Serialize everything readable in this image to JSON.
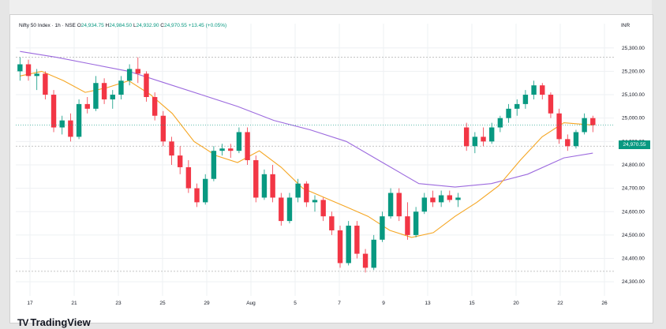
{
  "header": {
    "topbar_text": "",
    "symbol": "Nifty 50 Index · 1h · NSE",
    "open_label": "O",
    "open": "24,934.75",
    "high_label": "H",
    "high": "24,984.50",
    "low_label": "L",
    "low": "24,932.90",
    "close_label": "C",
    "close": "24,970.55",
    "change": "+13.45 (+0.05%)",
    "currency": "INR"
  },
  "price_tag": "24,970.55",
  "brand": {
    "logo_glyph": "TV",
    "name": "TradingView"
  },
  "colors": {
    "up": "#089981",
    "down": "#f23645",
    "ma_fast": "#f5a623",
    "ma_slow": "#9c6ade",
    "grid": "#eef0f3",
    "dashed": "#b0b0b0"
  },
  "chart_data": {
    "type": "candlestick",
    "y_axis_ticks": [
      25300,
      25200,
      25100,
      25000,
      24900,
      24800,
      24700,
      24600,
      24500,
      24400,
      24300
    ],
    "y_axis_labels": [
      "25,300.00",
      "25,200.00",
      "25,100.00",
      "25,000.00",
      "24,900.00",
      "24,800.00",
      "24,700.00",
      "24,600.00",
      "24,500.00",
      "24,400.00",
      "24,300.00"
    ],
    "ylim": [
      24250,
      25370
    ],
    "x_axis_labels": [
      "17",
      "21",
      "23",
      "25",
      "29",
      "Aug",
      "5",
      "7",
      "9",
      "13",
      "15",
      "20",
      "22",
      "26"
    ],
    "ma_fast": [
      [
        0,
        25180
      ],
      [
        3,
        25200
      ],
      [
        6,
        25160
      ],
      [
        9,
        25110
      ],
      [
        12,
        25130
      ],
      [
        15,
        25160
      ],
      [
        18,
        25100
      ],
      [
        21,
        25020
      ],
      [
        24,
        24900
      ],
      [
        27,
        24840
      ],
      [
        30,
        24810
      ],
      [
        33,
        24860
      ],
      [
        36,
        24790
      ],
      [
        39,
        24700
      ],
      [
        42,
        24660
      ],
      [
        45,
        24620
      ],
      [
        48,
        24580
      ],
      [
        51,
        24520
      ],
      [
        54,
        24490
      ],
      [
        57,
        24510
      ],
      [
        60,
        24580
      ],
      [
        63,
        24640
      ],
      [
        66,
        24710
      ],
      [
        69,
        24820
      ],
      [
        72,
        24920
      ],
      [
        75,
        24980
      ],
      [
        77,
        24975
      ],
      [
        79,
        24970
      ]
    ],
    "ma_slow": [
      [
        0,
        25285
      ],
      [
        5,
        25260
      ],
      [
        10,
        25230
      ],
      [
        15,
        25200
      ],
      [
        20,
        25150
      ],
      [
        25,
        25100
      ],
      [
        30,
        25050
      ],
      [
        35,
        24990
      ],
      [
        40,
        24950
      ],
      [
        45,
        24900
      ],
      [
        50,
        24810
      ],
      [
        55,
        24720
      ],
      [
        60,
        24705
      ],
      [
        65,
        24720
      ],
      [
        70,
        24760
      ],
      [
        75,
        24830
      ],
      [
        79,
        24850
      ]
    ],
    "candles": [
      [
        25200,
        25260,
        25160,
        25230
      ],
      [
        25230,
        25250,
        25160,
        25180
      ],
      [
        25180,
        25210,
        25120,
        25190
      ],
      [
        25190,
        25200,
        25080,
        25100
      ],
      [
        25100,
        25120,
        24940,
        24960
      ],
      [
        24960,
        25010,
        24930,
        24990
      ],
      [
        24990,
        25020,
        24900,
        24920
      ],
      [
        24920,
        25080,
        24910,
        25060
      ],
      [
        25060,
        25090,
        25020,
        25040
      ],
      [
        25040,
        25180,
        25030,
        25150
      ],
      [
        25150,
        25170,
        25060,
        25080
      ],
      [
        25080,
        25120,
        25040,
        25100
      ],
      [
        25100,
        25180,
        25080,
        25160
      ],
      [
        25160,
        25230,
        25140,
        25210
      ],
      [
        25210,
        25260,
        25150,
        25190
      ],
      [
        25190,
        25200,
        25070,
        25090
      ],
      [
        25090,
        25110,
        24990,
        25010
      ],
      [
        25010,
        25030,
        24880,
        24900
      ],
      [
        24900,
        24920,
        24800,
        24840
      ],
      [
        24840,
        24880,
        24760,
        24790
      ],
      [
        24790,
        24820,
        24680,
        24700
      ],
      [
        24700,
        24720,
        24620,
        24640
      ],
      [
        24640,
        24760,
        24630,
        24740
      ],
      [
        24740,
        24880,
        24730,
        24860
      ],
      [
        24860,
        24890,
        24840,
        24870
      ],
      [
        24870,
        24890,
        24830,
        24860
      ],
      [
        24860,
        24960,
        24850,
        24940
      ],
      [
        24940,
        24960,
        24800,
        24820
      ],
      [
        24820,
        24840,
        24640,
        24660
      ],
      [
        24660,
        24780,
        24650,
        24760
      ],
      [
        24760,
        24800,
        24640,
        24660
      ],
      [
        24660,
        24680,
        24540,
        24560
      ],
      [
        24560,
        24680,
        24550,
        24660
      ],
      [
        24660,
        24740,
        24640,
        24720
      ],
      [
        24720,
        24730,
        24620,
        24640
      ],
      [
        24640,
        24670,
        24600,
        24650
      ],
      [
        24650,
        24660,
        24560,
        24580
      ],
      [
        24580,
        24600,
        24500,
        24520
      ],
      [
        24520,
        24540,
        24360,
        24380
      ],
      [
        24380,
        24560,
        24370,
        24540
      ],
      [
        24540,
        24560,
        24400,
        24420
      ],
      [
        24420,
        24440,
        24340,
        24360
      ],
      [
        24360,
        24500,
        24350,
        24480
      ],
      [
        24480,
        24600,
        24470,
        24580
      ],
      [
        24580,
        24700,
        24570,
        24680
      ],
      [
        24680,
        24700,
        24560,
        24580
      ],
      [
        24580,
        24640,
        24480,
        24500
      ],
      [
        24500,
        24620,
        24490,
        24600
      ],
      [
        24600,
        24680,
        24590,
        24660
      ],
      [
        24660,
        24690,
        24620,
        24640
      ],
      [
        24640,
        24690,
        24620,
        24670
      ],
      [
        24670,
        24690,
        24640,
        24650
      ],
      [
        24650,
        24680,
        24620,
        24660
      ],
      [
        24960,
        24980,
        24860,
        24880
      ],
      [
        24880,
        24940,
        24850,
        24920
      ],
      [
        24920,
        24960,
        24880,
        24900
      ],
      [
        24900,
        24980,
        24890,
        24960
      ],
      [
        24960,
        25010,
        24940,
        25000
      ],
      [
        25000,
        25060,
        24980,
        25040
      ],
      [
        25040,
        25080,
        25010,
        25060
      ],
      [
        25060,
        25120,
        25040,
        25100
      ],
      [
        25100,
        25160,
        25080,
        25140
      ],
      [
        25140,
        25150,
        25080,
        25100
      ],
      [
        25100,
        25110,
        25000,
        25020
      ],
      [
        25020,
        25040,
        24890,
        24910
      ],
      [
        24910,
        24930,
        24860,
        24880
      ],
      [
        24880,
        24950,
        24870,
        24940
      ],
      [
        24940,
        25020,
        24930,
        25000
      ],
      [
        25000,
        25010,
        24940,
        24970
      ]
    ]
  }
}
